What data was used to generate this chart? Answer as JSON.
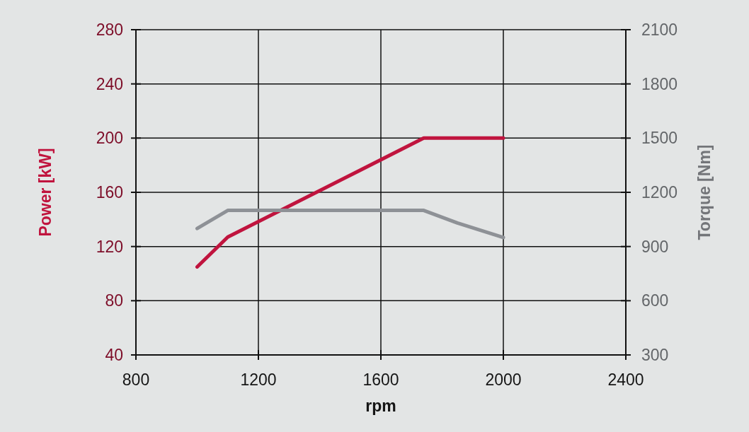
{
  "chart_data": {
    "type": "line",
    "xlabel": "rpm",
    "ylabel": "Power [kW]",
    "y2label": "Torque [Nm]",
    "xlim": [
      800,
      2400
    ],
    "xticks": [
      800,
      1200,
      1600,
      2000,
      2400
    ],
    "ylim": [
      40,
      280
    ],
    "yticks": [
      40,
      80,
      120,
      160,
      200,
      240,
      280
    ],
    "y2lim": [
      300,
      2100
    ],
    "y2ticks": [
      300,
      600,
      900,
      1200,
      1500,
      1800,
      2100
    ],
    "grid": true,
    "line_style": "solid",
    "series": [
      {
        "color": "#c0143e",
        "x": [
          1000,
          1100,
          1740,
          2000
        ],
        "values": [
          105,
          127,
          200,
          200
        ]
      },
      {
        "color": "#8e9196",
        "axis": "y2",
        "x": [
          1000,
          1100,
          1740,
          1850,
          2000
        ],
        "values": [
          1000,
          1100,
          1100,
          1030,
          950
        ]
      }
    ]
  }
}
